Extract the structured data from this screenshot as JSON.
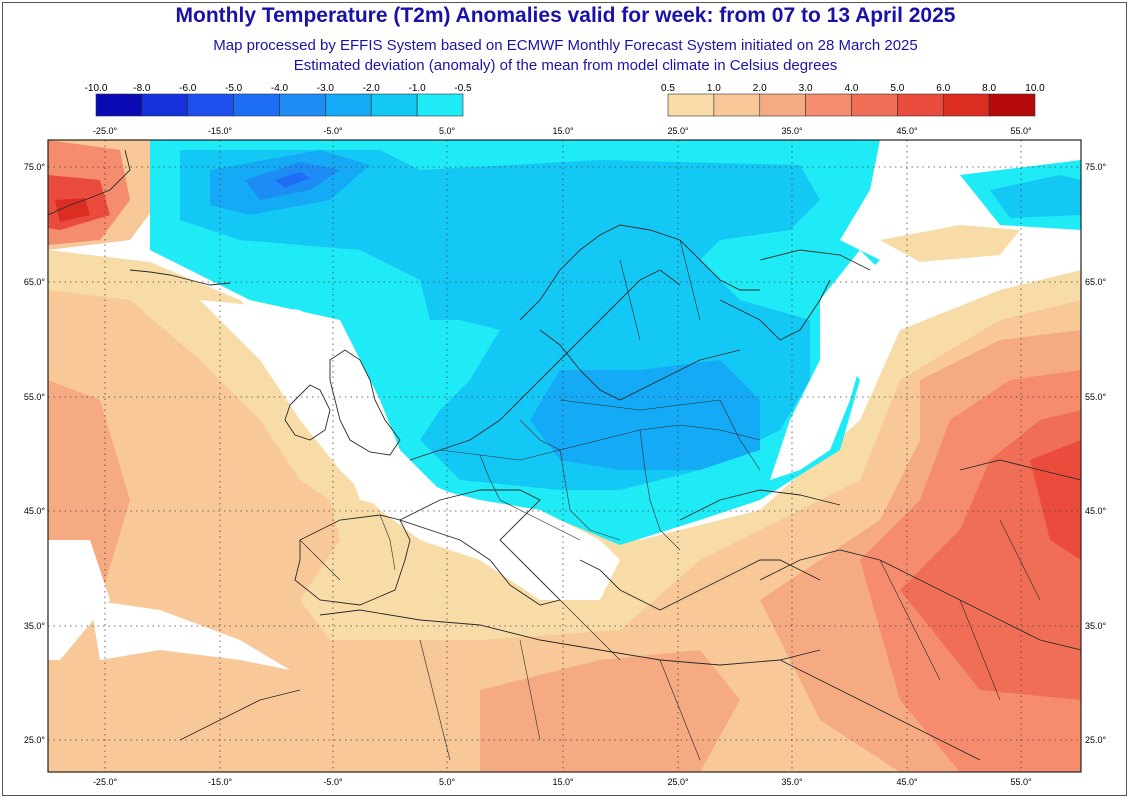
{
  "title": "Monthly Temperature (T2m) Anomalies valid for week: from 07 to 13 April 2025",
  "subtitle_1": "Map processed by EFFIS System based on ECMWF Monthly Forecast System initiated on 28 March 2025",
  "subtitle_2": "Estimated deviation (anomaly) of the mean from model climate in Celsius degrees",
  "legend_cold": {
    "labels": [
      "-10.0",
      "-8.0",
      "-6.0",
      "-5.0",
      "-4.0",
      "-3.0",
      "-2.0",
      "-1.0",
      "-0.5"
    ],
    "colors": [
      "#0a0ab4",
      "#1432dc",
      "#1e50f0",
      "#1e6ef5",
      "#1e8cf5",
      "#14aaf5",
      "#14c8f5",
      "#1eebf5"
    ]
  },
  "legend_warm": {
    "labels": [
      "0.5",
      "1.0",
      "2.0",
      "3.0",
      "4.0",
      "5.0",
      "6.0",
      "8.0",
      "10.0"
    ],
    "colors": [
      "#f8dca8",
      "#f8c898",
      "#f5aa82",
      "#f58c6e",
      "#f06e55",
      "#eb4b3c",
      "#dc2d23",
      "#b40a0a"
    ]
  },
  "lon_labels": [
    "-25.0°",
    "-15.0°",
    "-5.0°",
    "5.0°",
    "15.0°",
    "25.0°",
    "35.0°",
    "45.0°",
    "55.0°"
  ],
  "lat_labels": [
    "75.0°",
    "65.0°",
    "55.0°",
    "45.0°",
    "35.0°",
    "25.0°"
  ]
}
